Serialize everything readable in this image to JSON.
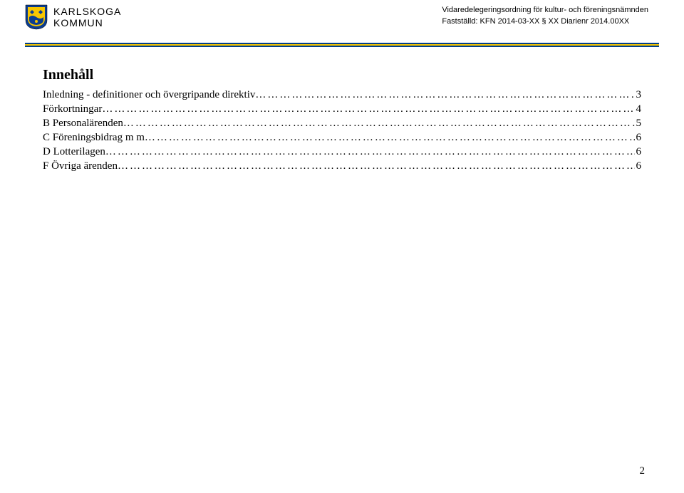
{
  "colors": {
    "rule_blue": "#003f8a",
    "rule_yellow": "#f7c600",
    "shield_blue": "#0b3d91",
    "shield_yellow": "#f7c600",
    "text": "#000000",
    "background": "#ffffff"
  },
  "header": {
    "org_line1": "KARLSKOGA",
    "org_line2": "KOMMUN",
    "right_line1": "Vidaredelegeringsordning för kultur- och föreningsnämnden",
    "right_line2": "Fastställd: KFN 2014-03-XX  § XX Diarienr 2014.00XX"
  },
  "toc": {
    "title": "Innehåll",
    "entries": [
      {
        "label": "Inledning - definitioner och övergripande direktiv",
        "page": "3"
      },
      {
        "label": "Förkortningar",
        "page": "4"
      },
      {
        "label": "B  Personalärenden",
        "page": "5"
      },
      {
        "label": "C  Föreningsbidrag m m",
        "page": "6"
      },
      {
        "label": "D Lotterilagen",
        "page": "6"
      },
      {
        "label": "F Övriga ärenden",
        "page": "6"
      }
    ],
    "dot_fill": "…………………………………………………………………………………………………………………………………………………………………………………………………"
  },
  "page_number": "2"
}
